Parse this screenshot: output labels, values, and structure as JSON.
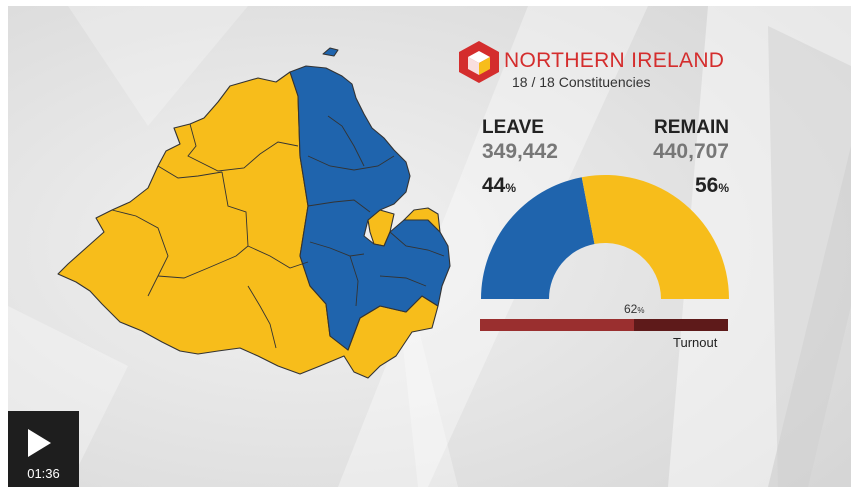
{
  "header": {
    "title": "NORTHERN IRELAND",
    "subtitle": "18 / 18 Constituencies",
    "logo_icon": "cube-logo-icon"
  },
  "results": {
    "leave": {
      "label": "LEAVE",
      "votes": "349,442",
      "percent": "44",
      "percent_value": 44,
      "color": "#1f64ad"
    },
    "remain": {
      "label": "REMAIN",
      "votes": "440,707",
      "percent": "56",
      "percent_value": 56,
      "color": "#f7bd1b"
    },
    "percent_sign": "%"
  },
  "turnout": {
    "label": "Turnout",
    "percent": "62",
    "percent_value": 62,
    "color_filled": "#9a2f2f",
    "color_empty": "#5e1a1a"
  },
  "player": {
    "time": "01:36",
    "play_icon": "play-icon"
  },
  "map": {
    "leave_color": "#1f64ad",
    "remain_color": "#f7bd1b",
    "border_color": "#333333"
  }
}
